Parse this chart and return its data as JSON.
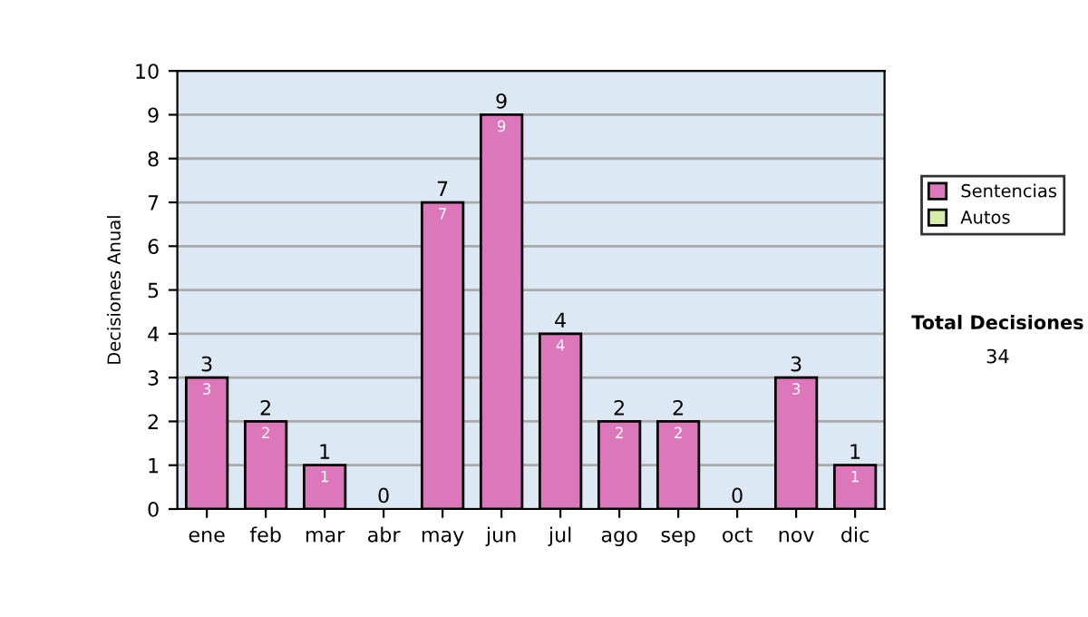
{
  "chart_data": {
    "type": "bar",
    "ylabel": "Decisiones Anual",
    "categories": [
      "ene",
      "feb",
      "mar",
      "abr",
      "may",
      "jun",
      "jul",
      "ago",
      "sep",
      "oct",
      "nov",
      "dic"
    ],
    "series": [
      {
        "name": "Sentencias",
        "color": "#dd77bb",
        "values": [
          3,
          2,
          1,
          0,
          7,
          9,
          4,
          2,
          2,
          0,
          3,
          1
        ],
        "value_labels": [
          "3",
          "2",
          "1",
          null,
          "7",
          "9",
          "4",
          "2",
          "2",
          null,
          "3",
          "1"
        ]
      },
      {
        "name": "Autos",
        "color": "#d6eeaa",
        "values": [
          null,
          null,
          null,
          null,
          null,
          null,
          null,
          null,
          null,
          null,
          null,
          null
        ]
      }
    ],
    "stacked": true,
    "totals": [
      "3",
      "2",
      "1",
      "0",
      "7",
      "9",
      "4",
      "2",
      "2",
      "0",
      "3",
      "1"
    ],
    "ylim": [
      0,
      10
    ],
    "yticks": [
      0,
      1,
      2,
      3,
      4,
      5,
      6,
      7,
      8,
      9,
      10
    ],
    "grid": "y",
    "legend": "right",
    "annotations": [
      "Total Decisiones",
      "34"
    ]
  }
}
